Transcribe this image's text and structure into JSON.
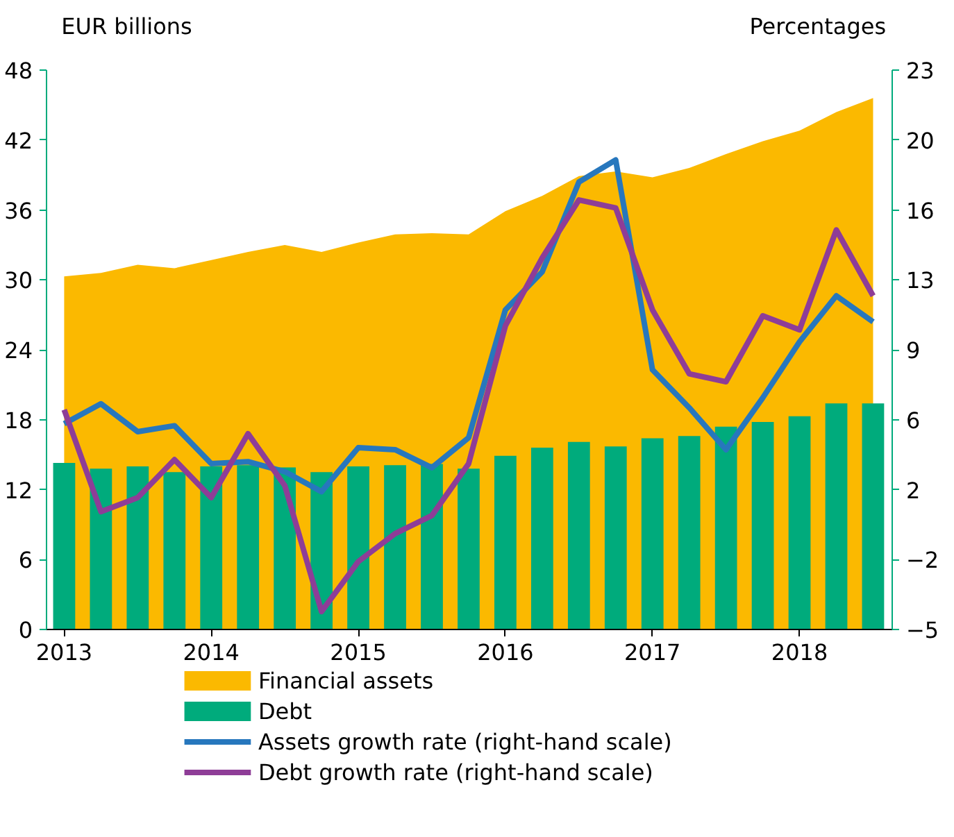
{
  "chart_data": {
    "type": "bar",
    "ylabel": "EUR billions",
    "y2label": "Percentages",
    "x": [
      2013,
      2013.25,
      2013.5,
      2013.75,
      2014,
      2014.25,
      2014.5,
      2014.75,
      2015,
      2015.25,
      2015.5,
      2015.75,
      2016,
      2016.25,
      2016.5,
      2016.75,
      2017,
      2017.25,
      2017.5,
      2017.75,
      2018,
      2018.25,
      2018.5
    ],
    "xlim": [
      2012.88,
      2018.63
    ],
    "xticks": [
      2013,
      2014,
      2015,
      2016,
      2017,
      2018
    ],
    "ylim": [
      0,
      48
    ],
    "yticks": [
      0,
      6,
      12,
      18,
      24,
      30,
      36,
      42,
      48
    ],
    "y2lim": [
      -5,
      23
    ],
    "y2ticks": [
      -5,
      {
        "value": -1.5,
        "label": "−2"
      },
      2,
      {
        "value": 5.5,
        "label": "6"
      },
      9,
      {
        "value": 12.5,
        "label": "13"
      },
      16,
      {
        "value": 19.5,
        "label": "20"
      },
      23
    ],
    "grid": false,
    "legend": "bottom",
    "marker": "none",
    "line_style": "solid",
    "series": [
      {
        "name": "Financial assets",
        "type": "area",
        "color": "#fbb900",
        "values": [
          30.3,
          30.6,
          31.3,
          31.0,
          31.7,
          32.4,
          33.0,
          32.4,
          33.2,
          33.9,
          34.0,
          33.9,
          35.9,
          37.2,
          38.9,
          39.3,
          38.8,
          39.6,
          40.8,
          41.9,
          42.8,
          44.4,
          45.6
        ]
      },
      {
        "name": "Debt",
        "color": "#00ab7c",
        "values": [
          14.3,
          13.8,
          14.0,
          13.5,
          14.0,
          14.1,
          13.9,
          13.5,
          14.0,
          14.1,
          14.2,
          13.8,
          14.9,
          15.6,
          16.1,
          15.7,
          16.4,
          16.6,
          17.4,
          17.8,
          18.3,
          19.4,
          19.4
        ]
      },
      {
        "name": "Assets growth rate (right-hand scale)",
        "type": "line",
        "axis": "y2",
        "color": "#2777bd",
        "values": [
          5.3,
          6.3,
          4.9,
          5.2,
          3.3,
          3.4,
          2.9,
          1.9,
          4.1,
          4.0,
          3.1,
          4.6,
          11.0,
          12.9,
          17.4,
          18.5,
          8.0,
          6.1,
          4.0,
          6.6,
          9.4,
          11.7,
          10.4
        ]
      },
      {
        "name": "Debt growth rate (right-hand scale)",
        "type": "line",
        "axis": "y2",
        "color": "#8e3d97",
        "values": [
          6.0,
          0.9,
          1.6,
          3.5,
          1.6,
          4.8,
          2.2,
          -4.1,
          -1.6,
          -0.2,
          0.7,
          3.3,
          10.2,
          13.6,
          16.5,
          16.1,
          11.0,
          7.8,
          7.4,
          10.7,
          10.0,
          15.0,
          11.7
        ]
      }
    ]
  }
}
